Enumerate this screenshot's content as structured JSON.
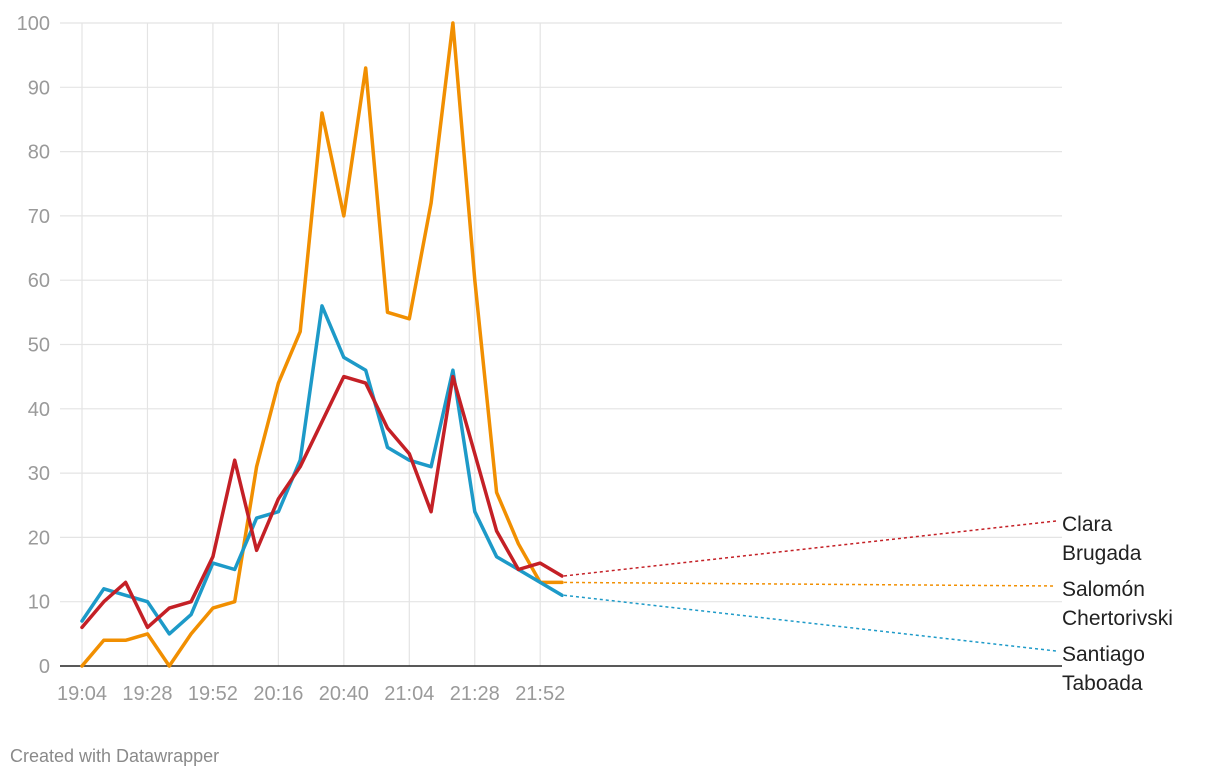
{
  "chart_data": {
    "type": "line",
    "x_ticks": [
      "19:04",
      "19:28",
      "19:52",
      "20:16",
      "20:40",
      "21:04",
      "21:28",
      "21:52"
    ],
    "y_ticks": [
      0,
      10,
      20,
      30,
      40,
      50,
      60,
      70,
      80,
      90,
      100
    ],
    "ylim": [
      0,
      100
    ],
    "x_step_minutes": 8,
    "x": [
      "19:04",
      "19:12",
      "19:20",
      "19:28",
      "19:36",
      "19:44",
      "19:52",
      "20:00",
      "20:08",
      "20:16",
      "20:24",
      "20:32",
      "20:40",
      "20:48",
      "20:56",
      "21:04",
      "21:12",
      "21:20",
      "21:28",
      "21:36",
      "21:44",
      "21:52",
      "22:00"
    ],
    "grid": true,
    "series": [
      {
        "name": "Salomón Chertorivski",
        "label_lines": [
          "Salomón",
          "Chertorivski"
        ],
        "color": "#f18f01",
        "values": [
          0,
          4,
          4,
          5,
          0,
          5,
          9,
          10,
          31,
          44,
          52,
          86,
          70,
          93,
          55,
          54,
          72,
          100,
          60,
          27,
          19,
          13,
          13
        ]
      },
      {
        "name": "Santiago Taboada",
        "label_lines": [
          "Santiago",
          "Taboada"
        ],
        "color": "#1d9ac8",
        "values": [
          7,
          12,
          11,
          10,
          5,
          8,
          16,
          15,
          23,
          24,
          32,
          56,
          48,
          46,
          34,
          32,
          31,
          46,
          24,
          17,
          15,
          13,
          11
        ]
      },
      {
        "name": "Clara Brugada",
        "label_lines": [
          "Clara",
          "Brugada"
        ],
        "color": "#c42026",
        "values": [
          6,
          10,
          13,
          6,
          9,
          10,
          17,
          32,
          18,
          26,
          31,
          38,
          45,
          44,
          37,
          33,
          24,
          45,
          33,
          21,
          15,
          16,
          14
        ]
      }
    ]
  },
  "credit": "Created with Datawrapper"
}
